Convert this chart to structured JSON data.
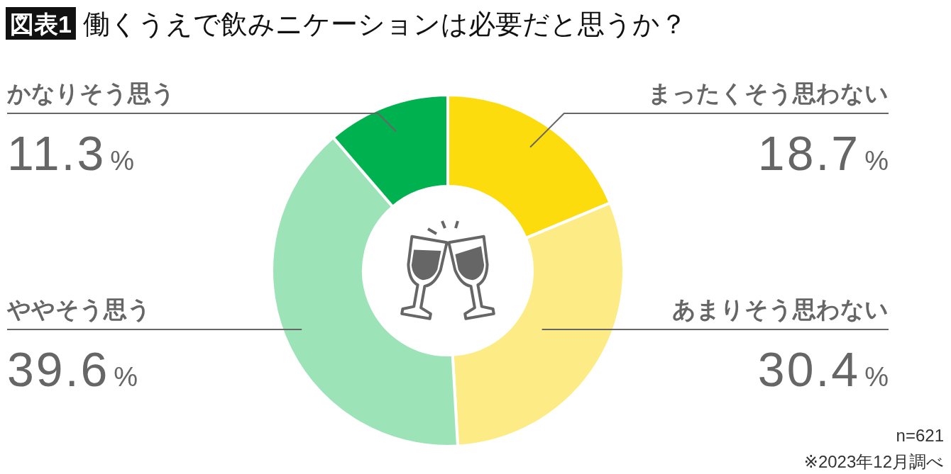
{
  "chart_data": {
    "type": "donut",
    "title": "働くうえで飲みニケーションは必要だと思うか？",
    "categories": [
      "まったくそう思わない",
      "あまりそう思わない",
      "ややそう思う",
      "かなりそう思う"
    ],
    "values": [
      18.7,
      30.4,
      39.6,
      11.3
    ],
    "colors": [
      "#fcdc0c",
      "#fdec86",
      "#9de3b8",
      "#00b14f"
    ],
    "value_labels": [
      "18.7%",
      "30.4%",
      "39.6%",
      "11.3%"
    ],
    "annotations": [
      "図表1",
      "n=621",
      "※2023年12月調べ"
    ]
  }
}
